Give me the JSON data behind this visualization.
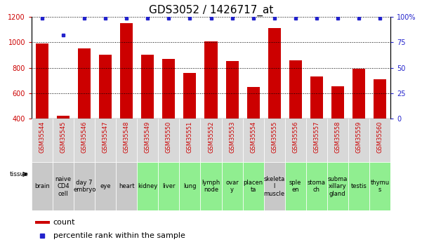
{
  "title": "GDS3052 / 1426717_at",
  "gsm_labels": [
    "GSM35544",
    "GSM35545",
    "GSM35546",
    "GSM35547",
    "GSM35548",
    "GSM35549",
    "GSM35550",
    "GSM35551",
    "GSM35552",
    "GSM35553",
    "GSM35554",
    "GSM35555",
    "GSM35556",
    "GSM35557",
    "GSM35558",
    "GSM35559",
    "GSM35560"
  ],
  "tissue_labels": [
    "brain",
    "naive\nCD4\ncell",
    "day 7\nembryо",
    "eye",
    "heart",
    "kidney",
    "liver",
    "lung",
    "lymph\nnode",
    "ovar\ny",
    "placen\nta",
    "skeleta\nl\nmuscle",
    "sple\nen",
    "stoma\nch",
    "subma\nxillary\ngland",
    "testis",
    "thymu\ns"
  ],
  "tissue_colors": [
    "#c8c8c8",
    "#c8c8c8",
    "#c8c8c8",
    "#c8c8c8",
    "#c8c8c8",
    "#90ee90",
    "#90ee90",
    "#90ee90",
    "#90ee90",
    "#90ee90",
    "#90ee90",
    "#c8c8c8",
    "#90ee90",
    "#90ee90",
    "#90ee90",
    "#90ee90",
    "#90ee90"
  ],
  "count_values": [
    990,
    420,
    950,
    900,
    1150,
    905,
    870,
    757,
    1005,
    855,
    648,
    1110,
    857,
    730,
    655,
    795,
    712
  ],
  "percentile_values": [
    99,
    82,
    99,
    99,
    99,
    99,
    99,
    99,
    99,
    99,
    99,
    99,
    99,
    99,
    99,
    99,
    99
  ],
  "ylim_left": [
    400,
    1200
  ],
  "ylim_right": [
    0,
    100
  ],
  "yticks_left": [
    400,
    600,
    800,
    1000,
    1200
  ],
  "yticks_right": [
    0,
    25,
    50,
    75,
    100
  ],
  "bar_color": "#cc0000",
  "dot_color": "#2222cc",
  "grid_color": "#000000",
  "left_tick_color": "#cc0000",
  "right_tick_color": "#2222cc",
  "legend_count_color": "#cc0000",
  "legend_dot_color": "#2222cc",
  "title_fontsize": 11,
  "tick_fontsize": 7,
  "gsm_fontsize": 6,
  "tissue_fontsize": 6,
  "legend_fontsize": 8
}
